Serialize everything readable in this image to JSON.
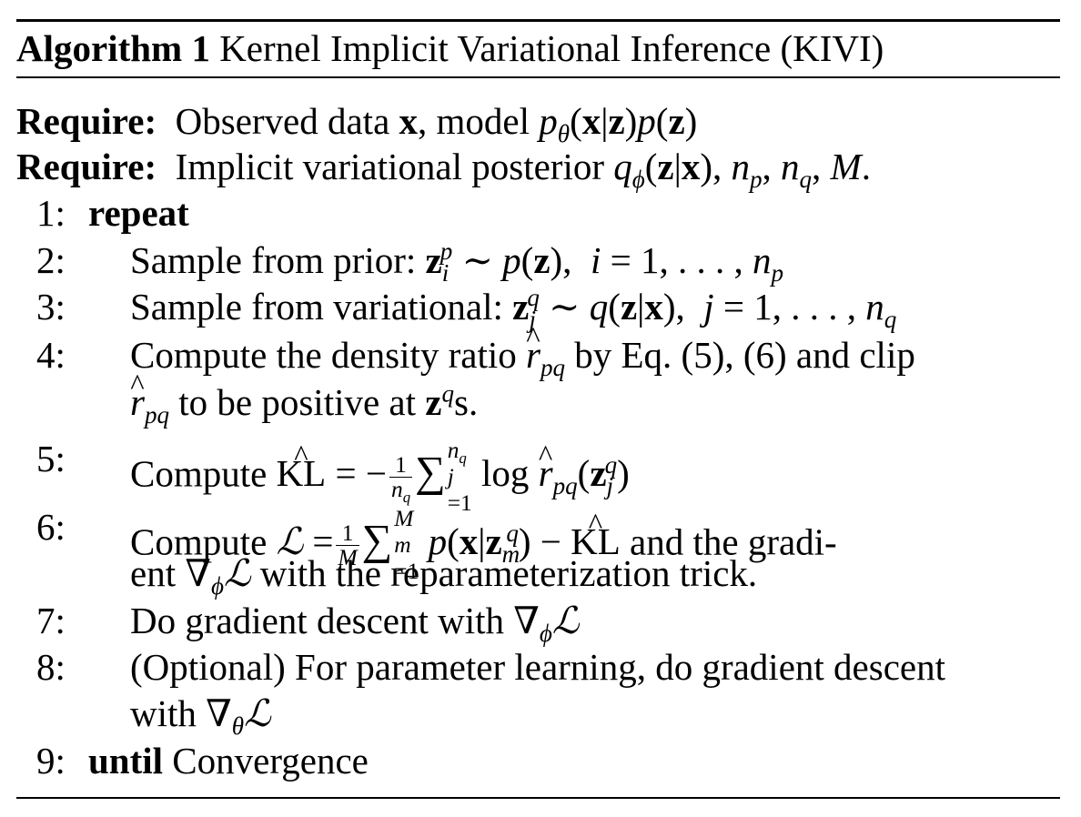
{
  "algorithm": {
    "label": "Algorithm 1",
    "title": "Kernel Implicit Variational Inference (KIVI)"
  },
  "requires": [
    {
      "keyword": "Require:",
      "text": "Observed data",
      "math_1": "x",
      "text_2": ", model"
    },
    {
      "keyword": "Require:",
      "text": "Implicit variational posterior"
    }
  ],
  "steps": [
    {
      "num": "1:",
      "keyword": "repeat"
    },
    {
      "num": "2:",
      "text": "Sample from prior:"
    },
    {
      "num": "3:",
      "text": "Sample from variational:"
    },
    {
      "num": "4:",
      "text": "Compute the density ratio",
      "text_2": "by Eq. (5), (6) and clip",
      "text_3": "to be positive at",
      "text_4": "s."
    },
    {
      "num": "5:",
      "text": "Compute"
    },
    {
      "num": "6:",
      "text": "Compute",
      "text_2": "and the gradi-",
      "text_3": "ent",
      "text_4": "with the reparameterization trick."
    },
    {
      "num": "7:",
      "text": "Do gradient descent with"
    },
    {
      "num": "8:",
      "text": "(Optional) For parameter learning, do gradient descent",
      "text_2": "with"
    },
    {
      "num": "9:",
      "keyword": "until",
      "text": "Convergence"
    }
  ]
}
